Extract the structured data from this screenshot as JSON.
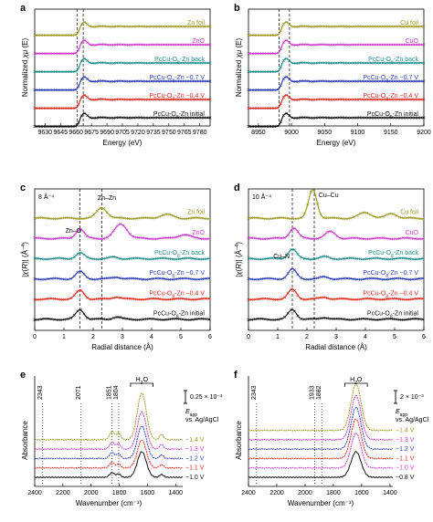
{
  "chart_data": [
    {
      "panel": "a",
      "type": "line",
      "xlabel": "Energy (eV)",
      "ylabel": "Normalized χμ (E)",
      "xlim": [
        9620,
        9790
      ],
      "xticks": [
        9630,
        9645,
        9660,
        9675,
        9690,
        9705,
        9720,
        9735,
        9750,
        9765,
        9780
      ],
      "vlines": [
        9661,
        9667
      ],
      "edge": 9663,
      "amp": 1,
      "series": [
        {
          "name": "Zn foil",
          "color": "#9e9a24",
          "marker": "x"
        },
        {
          "name": "ZnO",
          "color": "#cc3ccc",
          "marker": "x"
        },
        {
          "name": "PcCu-O₈-Zn back",
          "color": "#1f8f8a",
          "marker": "x"
        },
        {
          "name": "PcCu-O₈-Zn −0.7 V",
          "color": "#2b3fb5",
          "marker": "x"
        },
        {
          "name": "PcCu-O₈-Zn −0.4 V",
          "color": "#dd2a1e",
          "marker": "x"
        },
        {
          "name": "PcCu-O₈-Zn initial",
          "color": "#111111",
          "marker": "x"
        }
      ]
    },
    {
      "panel": "b",
      "type": "line",
      "xlabel": "Energy (eV)",
      "ylabel": "Normalized χμ (E)",
      "xlim": [
        8935,
        9200
      ],
      "xticks": [
        8950,
        9000,
        9050,
        9100,
        9150,
        9200
      ],
      "vlines": [
        8981,
        8997
      ],
      "edge": 8984,
      "amp": 1,
      "series": [
        {
          "name": "Cu foil",
          "color": "#9e9a24",
          "marker": "x"
        },
        {
          "name": "CuO",
          "color": "#cc3ccc",
          "marker": "x"
        },
        {
          "name": "PcCu-O₈-Zn back",
          "color": "#1f8f8a",
          "marker": "x"
        },
        {
          "name": "PcCu-O₈-Zn −0.7 V",
          "color": "#2b3fb5",
          "marker": "x"
        },
        {
          "name": "PcCu-O₈-Zn −0.4 V",
          "color": "#dd2a1e",
          "marker": "x"
        },
        {
          "name": "PcCu-O₈-Zn initial",
          "color": "#111111",
          "marker": "x"
        }
      ]
    },
    {
      "panel": "c",
      "type": "line",
      "xlabel": "Radial distance (Å)",
      "ylabel": "|χ(R)| (Å⁻⁴)",
      "xlim": [
        0,
        6
      ],
      "xticks": [
        0,
        1,
        2,
        3,
        4,
        5,
        6
      ],
      "vlines": [
        1.55,
        2.3
      ],
      "scale_label": "8 Å⁻⁴",
      "annotations": [
        "Zn–O",
        "Zn–Zn"
      ],
      "series": [
        {
          "name": "Zn foil",
          "color": "#9e9a24",
          "marker": "x",
          "peaks": [
            [
              2.3,
              0.55,
              0.25
            ],
            [
              4.5,
              0.2,
              0.3
            ]
          ]
        },
        {
          "name": "ZnO",
          "color": "#cc3ccc",
          "marker": "x",
          "peaks": [
            [
              1.55,
              0.5,
              0.2
            ],
            [
              2.95,
              0.75,
              0.3
            ],
            [
              5.1,
              0.2,
              0.3
            ]
          ]
        },
        {
          "name": "PcCu-O₈-Zn back",
          "color": "#1f8f8a",
          "marker": "x",
          "peaks": [
            [
              1.55,
              0.3,
              0.2
            ],
            [
              2.7,
              0.08,
              0.2
            ]
          ]
        },
        {
          "name": "PcCu-O₈-Zn −0.7 V",
          "color": "#2b3fb5",
          "marker": "x",
          "peaks": [
            [
              1.55,
              0.38,
              0.2
            ],
            [
              2.8,
              0.1,
              0.2
            ]
          ]
        },
        {
          "name": "PcCu-O₈-Zn −0.4 V",
          "color": "#dd2a1e",
          "marker": "x",
          "peaks": [
            [
              1.55,
              0.45,
              0.2
            ],
            [
              2.8,
              0.12,
              0.2
            ]
          ]
        },
        {
          "name": "PcCu-O₈-Zn initial",
          "color": "#111111",
          "marker": "x",
          "peaks": [
            [
              1.55,
              0.5,
              0.2
            ],
            [
              2.8,
              0.12,
              0.2
            ]
          ]
        }
      ]
    },
    {
      "panel": "d",
      "type": "line",
      "xlabel": "Radial distance (Å)",
      "ylabel": "|χ(R)| (Å⁻⁴)",
      "xlim": [
        0,
        6
      ],
      "xticks": [
        0,
        1,
        2,
        3,
        4,
        5,
        6
      ],
      "vlines": [
        1.5,
        2.25
      ],
      "scale_label": "10 Å⁻⁴",
      "annotations": [
        "Cu–Cu",
        "Cu–N"
      ],
      "series": [
        {
          "name": "Cu foil",
          "color": "#9e9a24",
          "marker": "x",
          "peaks": [
            [
              2.2,
              1.5,
              0.2
            ],
            [
              4.0,
              0.3,
              0.3
            ],
            [
              4.9,
              0.25,
              0.25
            ]
          ]
        },
        {
          "name": "CuO",
          "color": "#cc3ccc",
          "marker": "x",
          "peaks": [
            [
              1.55,
              0.55,
              0.2
            ],
            [
              2.8,
              0.35,
              0.25
            ]
          ]
        },
        {
          "name": "PcCu-O₈-Zn back",
          "color": "#1f8f8a",
          "marker": "x",
          "peaks": [
            [
              1.5,
              0.5,
              0.2
            ],
            [
              2.6,
              0.1,
              0.2
            ]
          ]
        },
        {
          "name": "PcCu-O₈-Zn −0.7 V",
          "color": "#2b3fb5",
          "marker": "x",
          "peaks": [
            [
              1.5,
              0.5,
              0.2
            ],
            [
              2.6,
              0.1,
              0.2
            ]
          ]
        },
        {
          "name": "PcCu-O₈-Zn −0.4 V",
          "color": "#dd2a1e",
          "marker": "x",
          "peaks": [
            [
              1.5,
              0.5,
              0.2
            ],
            [
              2.6,
              0.1,
              0.2
            ]
          ]
        },
        {
          "name": "PcCu-O₈-Zn initial",
          "color": "#111111",
          "marker": "x",
          "peaks": [
            [
              1.5,
              0.5,
              0.2
            ],
            [
              2.6,
              0.1,
              0.2
            ]
          ]
        }
      ]
    },
    {
      "panel": "e",
      "type": "line",
      "xlabel": "Wavenumber (cm⁻¹)",
      "ylabel": "Absorbance",
      "xlim": [
        2400,
        1350
      ],
      "xticks": [
        2400,
        2200,
        2000,
        1800,
        1600,
        1400
      ],
      "marked_lines": [
        "2343",
        "2071",
        "1851",
        "1804"
      ],
      "bracket_label": "H₂O",
      "scale_label": "0.25 × 10⁻³",
      "legend_title": [
        "E",
        "app"
      ],
      "legend_sub": "vs. Ag/AgCl",
      "series": [
        {
          "name": "−1.4 V",
          "color": "#9e9a24",
          "peaks": [
            [
              1851,
              0.18,
              25
            ],
            [
              1804,
              0.15,
              20
            ],
            [
              1640,
              1.0,
              45
            ],
            [
              1500,
              0.12,
              20
            ]
          ]
        },
        {
          "name": "−1.3 V",
          "color": "#cc3ccc",
          "peaks": [
            [
              1851,
              0.15,
              25
            ],
            [
              1804,
              0.12,
              20
            ],
            [
              1640,
              0.8,
              45
            ],
            [
              1500,
              0.1,
              20
            ]
          ]
        },
        {
          "name": "−1.2 V",
          "color": "#2b3fb5",
          "peaks": [
            [
              1851,
              0.13,
              25
            ],
            [
              1804,
              0.1,
              20
            ],
            [
              1640,
              0.7,
              45
            ],
            [
              1500,
              0.08,
              20
            ]
          ]
        },
        {
          "name": "−1.1 V",
          "color": "#dd2a1e",
          "peaks": [
            [
              1851,
              0.12,
              25
            ],
            [
              1804,
              0.08,
              20
            ],
            [
              1640,
              0.6,
              45
            ],
            [
              1500,
              0.07,
              20
            ]
          ]
        },
        {
          "name": "−1.0 V",
          "color": "#111111",
          "peaks": [
            [
              1851,
              0.1,
              25
            ],
            [
              1804,
              0.07,
              20
            ],
            [
              1640,
              0.55,
              45
            ],
            [
              1500,
              0.06,
              20
            ]
          ]
        }
      ]
    },
    {
      "panel": "f",
      "type": "line",
      "xlabel": "Wavenumber (cm⁻¹)",
      "ylabel": "Absorbance",
      "xlim": [
        2400,
        1380
      ],
      "xticks": [
        2400,
        2200,
        2000,
        1800,
        1600,
        1400
      ],
      "marked_lines": [
        "2343",
        "1933",
        "1882"
      ],
      "bracket_label": "H₂O",
      "scale_label": "2 × 10⁻³",
      "legend_title": [
        "E",
        "app"
      ],
      "legend_sub": "vs. Ag/AgCl",
      "series": [
        {
          "name": "−1.4 V",
          "color": "#9e9a24",
          "peaks": [
            [
              1640,
              1.0,
              50
            ]
          ]
        },
        {
          "name": "−1.3 V",
          "color": "#cc3ccc",
          "peaks": [
            [
              1640,
              0.95,
              50
            ]
          ]
        },
        {
          "name": "−1.2 V",
          "color": "#2b3fb5",
          "peaks": [
            [
              1640,
              0.9,
              50
            ]
          ]
        },
        {
          "name": "−1.1 V",
          "color": "#dd2a1e",
          "peaks": [
            [
              1640,
              0.85,
              50
            ]
          ]
        },
        {
          "name": "−1.0 V",
          "color": "#cc3ccc",
          "peaks": [
            [
              1640,
              0.75,
              50
            ]
          ]
        },
        {
          "name": "−0.8 V",
          "color": "#111111",
          "peaks": [
            [
              1640,
              0.55,
              50
            ]
          ]
        }
      ]
    }
  ]
}
